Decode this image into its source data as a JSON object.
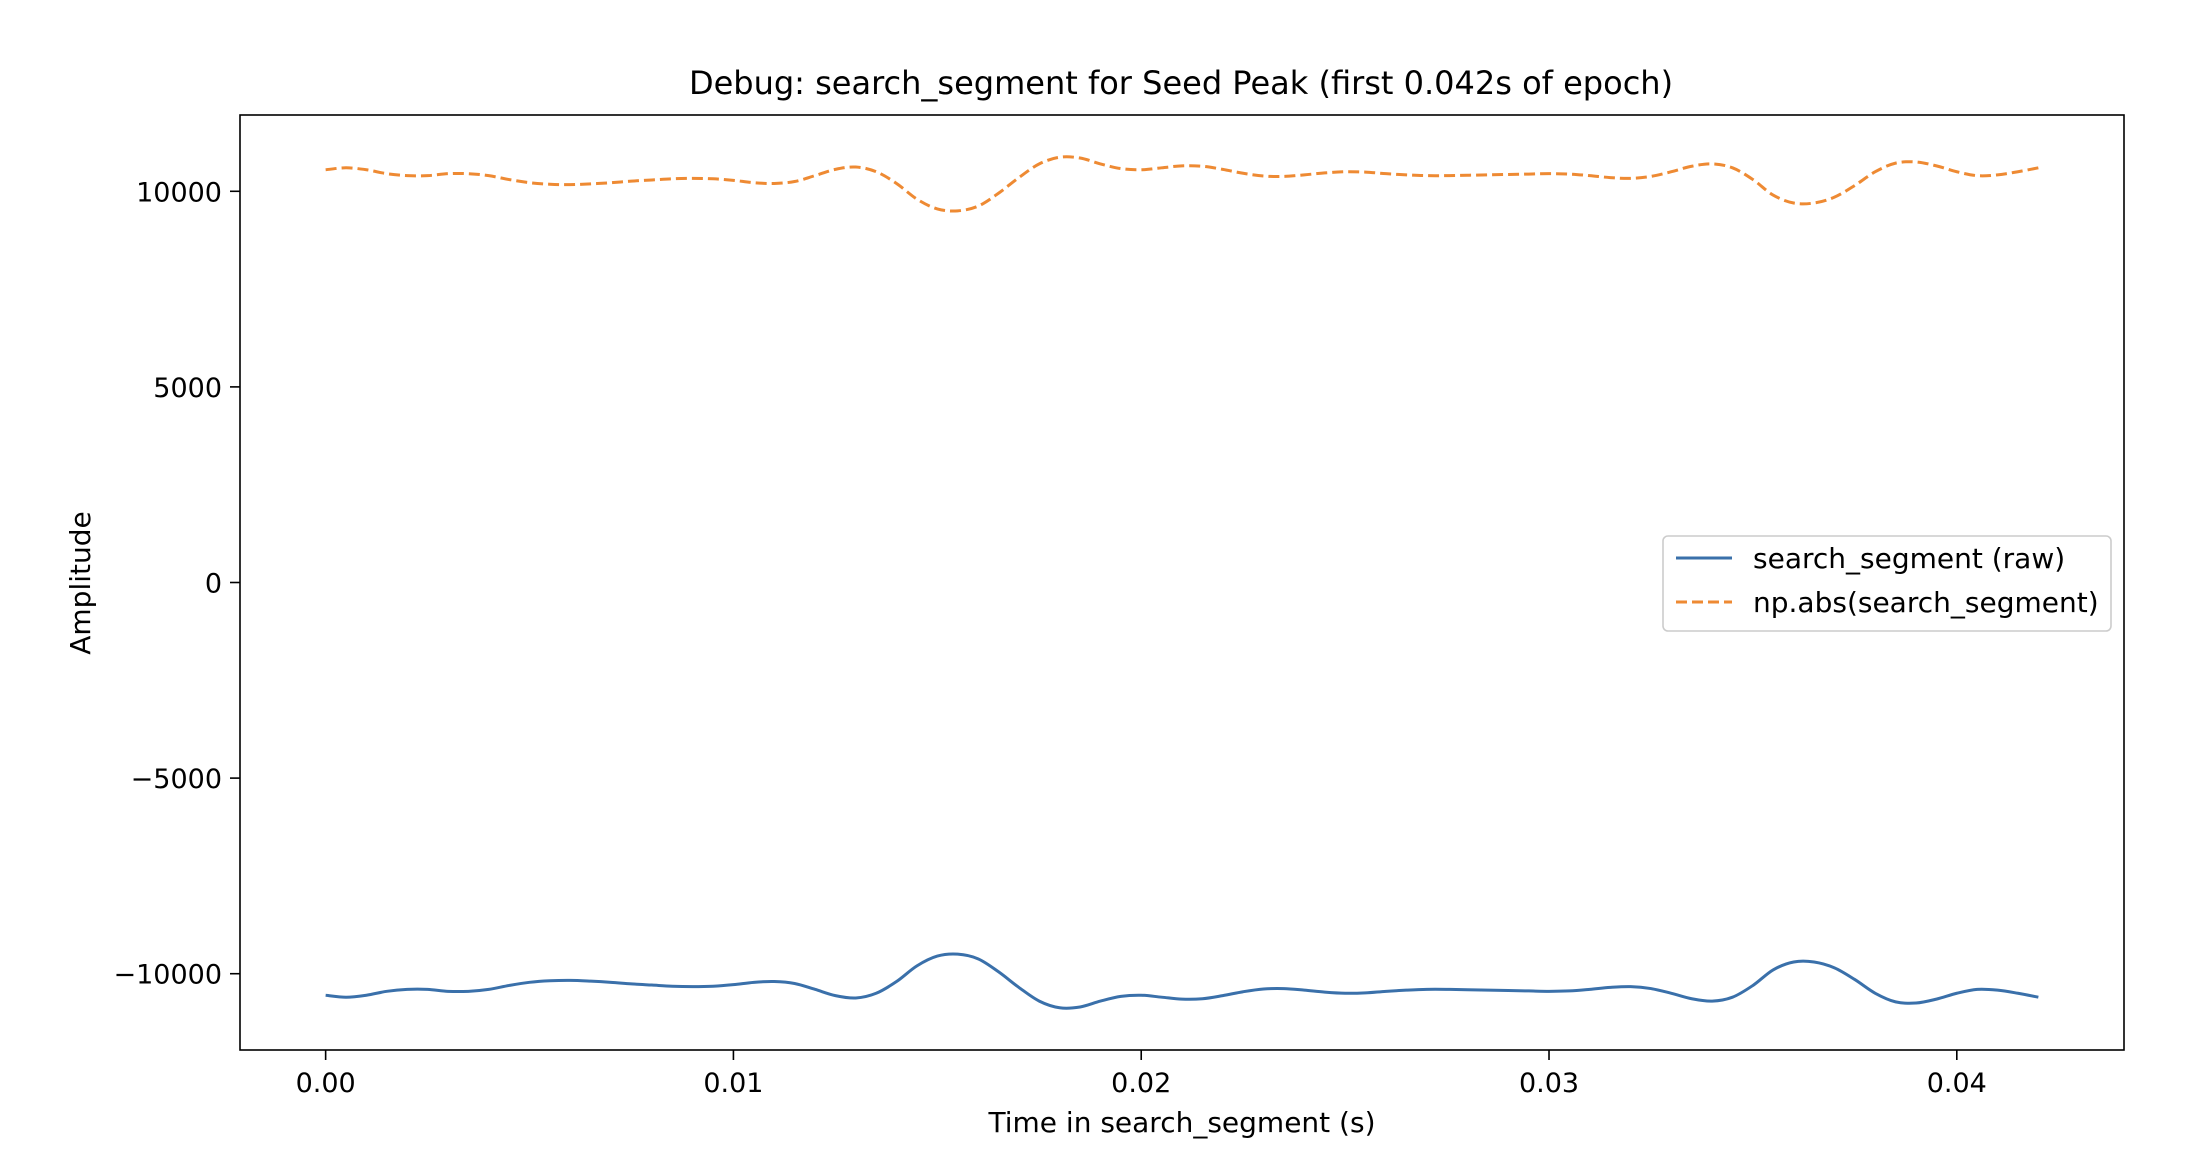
{
  "chart_data": {
    "type": "line",
    "title": "Debug: search_segment for Seed Peak (first 0.042s of epoch)",
    "xlabel": "Time in search_segment (s)",
    "ylabel": "Amplitude",
    "xlim": [
      -0.0021,
      0.0441
    ],
    "ylim": [
      -11950,
      11950
    ],
    "xticks": [
      0.0,
      0.01,
      0.02,
      0.03,
      0.04
    ],
    "xtick_labels": [
      "0.00",
      "0.01",
      "0.02",
      "0.03",
      "0.04"
    ],
    "yticks": [
      -10000,
      -5000,
      0,
      5000,
      10000
    ],
    "ytick_labels": [
      "−10000",
      "−5000",
      "0",
      "5000",
      "10000"
    ],
    "grid": false,
    "legend_position": "center-right",
    "series": [
      {
        "name": "search_segment (raw)",
        "color": "#3a70aa",
        "style": "solid",
        "x": [
          0.0,
          0.0005,
          0.001,
          0.0015,
          0.002,
          0.0025,
          0.003,
          0.0035,
          0.004,
          0.0045,
          0.005,
          0.0055,
          0.006,
          0.0065,
          0.007,
          0.0075,
          0.008,
          0.0085,
          0.009,
          0.0095,
          0.01,
          0.0105,
          0.011,
          0.0115,
          0.012,
          0.0125,
          0.013,
          0.0135,
          0.014,
          0.0145,
          0.015,
          0.0155,
          0.016,
          0.0165,
          0.017,
          0.0175,
          0.018,
          0.0185,
          0.019,
          0.0195,
          0.02,
          0.0205,
          0.021,
          0.0215,
          0.022,
          0.0225,
          0.023,
          0.0235,
          0.024,
          0.0245,
          0.025,
          0.0255,
          0.026,
          0.0265,
          0.027,
          0.0275,
          0.028,
          0.0285,
          0.029,
          0.0295,
          0.03,
          0.0305,
          0.031,
          0.0315,
          0.032,
          0.0325,
          0.033,
          0.0335,
          0.034,
          0.0345,
          0.035,
          0.0355,
          0.036,
          0.0365,
          0.037,
          0.0375,
          0.038,
          0.0385,
          0.039,
          0.0395,
          0.04,
          0.0405,
          0.041,
          0.0415,
          0.042
        ],
        "y": [
          -10550,
          -10600,
          -10550,
          -10450,
          -10400,
          -10400,
          -10450,
          -10450,
          -10400,
          -10300,
          -10220,
          -10180,
          -10170,
          -10190,
          -10220,
          -10260,
          -10290,
          -10320,
          -10330,
          -10320,
          -10280,
          -10220,
          -10200,
          -10250,
          -10400,
          -10560,
          -10620,
          -10500,
          -10200,
          -9800,
          -9550,
          -9500,
          -9620,
          -9950,
          -10350,
          -10700,
          -10870,
          -10850,
          -10700,
          -10580,
          -10550,
          -10600,
          -10650,
          -10640,
          -10560,
          -10460,
          -10390,
          -10380,
          -10420,
          -10470,
          -10500,
          -10490,
          -10450,
          -10420,
          -10400,
          -10400,
          -10410,
          -10420,
          -10430,
          -10440,
          -10450,
          -10440,
          -10400,
          -10350,
          -10330,
          -10380,
          -10500,
          -10640,
          -10700,
          -10600,
          -10300,
          -9900,
          -9700,
          -9700,
          -9850,
          -10150,
          -10500,
          -10720,
          -10750,
          -10650,
          -10500,
          -10400,
          -10420,
          -10500,
          -10600
        ]
      },
      {
        "name": "np.abs(search_segment)",
        "color": "#ee8a33",
        "style": "dashed",
        "x": [
          0.0,
          0.0005,
          0.001,
          0.0015,
          0.002,
          0.0025,
          0.003,
          0.0035,
          0.004,
          0.0045,
          0.005,
          0.0055,
          0.006,
          0.0065,
          0.007,
          0.0075,
          0.008,
          0.0085,
          0.009,
          0.0095,
          0.01,
          0.0105,
          0.011,
          0.0115,
          0.012,
          0.0125,
          0.013,
          0.0135,
          0.014,
          0.0145,
          0.015,
          0.0155,
          0.016,
          0.0165,
          0.017,
          0.0175,
          0.018,
          0.0185,
          0.019,
          0.0195,
          0.02,
          0.0205,
          0.021,
          0.0215,
          0.022,
          0.0225,
          0.023,
          0.0235,
          0.024,
          0.0245,
          0.025,
          0.0255,
          0.026,
          0.0265,
          0.027,
          0.0275,
          0.028,
          0.0285,
          0.029,
          0.0295,
          0.03,
          0.0305,
          0.031,
          0.0315,
          0.032,
          0.0325,
          0.033,
          0.0335,
          0.034,
          0.0345,
          0.035,
          0.0355,
          0.036,
          0.0365,
          0.037,
          0.0375,
          0.038,
          0.0385,
          0.039,
          0.0395,
          0.04,
          0.0405,
          0.041,
          0.0415,
          0.042
        ],
        "y": [
          10550,
          10600,
          10550,
          10450,
          10400,
          10400,
          10450,
          10450,
          10400,
          10300,
          10220,
          10180,
          10170,
          10190,
          10220,
          10260,
          10290,
          10320,
          10330,
          10320,
          10280,
          10220,
          10200,
          10250,
          10400,
          10560,
          10620,
          10500,
          10200,
          9800,
          9550,
          9500,
          9620,
          9950,
          10350,
          10700,
          10870,
          10850,
          10700,
          10580,
          10550,
          10600,
          10650,
          10640,
          10560,
          10460,
          10390,
          10380,
          10420,
          10470,
          10500,
          10490,
          10450,
          10420,
          10400,
          10400,
          10410,
          10420,
          10430,
          10440,
          10450,
          10440,
          10400,
          10350,
          10330,
          10380,
          10500,
          10640,
          10700,
          10600,
          10300,
          9900,
          9700,
          9700,
          9850,
          10150,
          10500,
          10720,
          10750,
          10650,
          10500,
          10400,
          10420,
          10500,
          10600
        ]
      }
    ]
  }
}
